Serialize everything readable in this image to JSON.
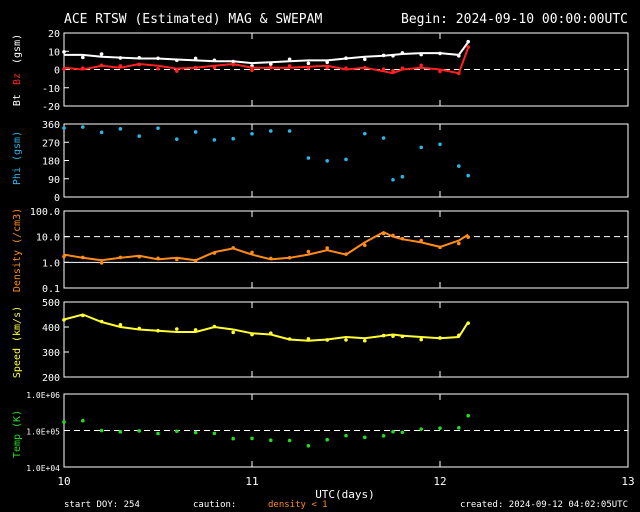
{
  "header": {
    "title": "ACE RTSW (Estimated) MAG & SWEPAM",
    "begin": "Begin: 2024-09-10 00:00:00UTC"
  },
  "footer": {
    "start_doy": "start DOY: 254",
    "caution": "caution:",
    "density_note": "density < 1",
    "created": "created: 2024-09-12 04:02:05UTC"
  },
  "xaxis": {
    "label": "UTC(days)",
    "ticks": [
      "10",
      "11",
      "12",
      "13"
    ]
  },
  "colors": {
    "bt": "#ffffff",
    "bz": "#ff2020",
    "bz_label": "#ff2020",
    "phi": "#29b6e8",
    "density": "#ff8c1a",
    "speed": "#ffff33",
    "temp": "#22dd22",
    "axes": "#ffffff"
  },
  "chart_data": [
    {
      "type": "line",
      "name": "mag",
      "ylabel_parts": [
        "Bt",
        "Bz",
        "(gsm)"
      ],
      "ylim": [
        -20,
        20
      ],
      "yticks": [
        "20",
        "10",
        "0",
        "-10",
        "-20"
      ],
      "reference_lines": [
        0
      ],
      "x": [
        10.0,
        10.1,
        10.2,
        10.3,
        10.4,
        10.5,
        10.6,
        10.7,
        10.8,
        10.9,
        11.0,
        11.1,
        11.2,
        11.3,
        11.4,
        11.5,
        11.6,
        11.7,
        11.75,
        11.8,
        11.9,
        12.0,
        12.1,
        12.15
      ],
      "series": [
        {
          "name": "Bt",
          "values": [
            8,
            8,
            7,
            6.5,
            6,
            6,
            5.5,
            5,
            4.5,
            4.5,
            3.5,
            4,
            4.5,
            5,
            5,
            6,
            7,
            7.5,
            8,
            8.5,
            9,
            9,
            8,
            15
          ]
        },
        {
          "name": "Bz",
          "values": [
            1,
            0,
            2,
            1,
            3,
            2,
            0.5,
            1,
            2,
            3,
            1,
            1,
            1,
            1.5,
            2,
            0,
            1,
            -1,
            -2,
            0,
            1,
            0,
            -2,
            12
          ]
        }
      ]
    },
    {
      "type": "scatter",
      "name": "phi",
      "ylabel": "Phi (gsm)",
      "ylim": [
        0,
        360
      ],
      "yticks": [
        "360",
        "270",
        "180",
        "90",
        "0"
      ],
      "x": [
        10.0,
        10.1,
        10.2,
        10.3,
        10.4,
        10.5,
        10.6,
        10.7,
        10.8,
        10.9,
        11.0,
        11.1,
        11.2,
        11.3,
        11.4,
        11.5,
        11.6,
        11.7,
        11.75,
        11.8,
        11.9,
        12.0,
        12.1,
        12.15
      ],
      "values": [
        330,
        340,
        320,
        350,
        310,
        330,
        300,
        330,
        280,
        300,
        310,
        330,
        320,
        200,
        180,
        190,
        310,
        280,
        80,
        100,
        230,
        250,
        150,
        120
      ]
    },
    {
      "type": "line",
      "name": "density",
      "ylabel": "Density (/cm3)",
      "scale": "log",
      "ylim": [
        0.1,
        100
      ],
      "yticks": [
        "100.0",
        "10.0",
        "1.0",
        "0.1"
      ],
      "reference_lines": [
        1,
        10
      ],
      "x": [
        10.0,
        10.1,
        10.2,
        10.3,
        10.4,
        10.5,
        10.6,
        10.7,
        10.8,
        10.9,
        11.0,
        11.1,
        11.2,
        11.3,
        11.4,
        11.5,
        11.6,
        11.7,
        11.75,
        11.8,
        11.9,
        12.0,
        12.1,
        12.15
      ],
      "values": [
        2.0,
        1.5,
        1.2,
        1.5,
        1.8,
        1.3,
        1.5,
        1.2,
        2.5,
        3.5,
        2.0,
        1.3,
        1.5,
        2.0,
        3.0,
        2.0,
        6.0,
        15.0,
        10.0,
        8.0,
        6.0,
        4.0,
        7.0,
        12.0
      ]
    },
    {
      "type": "line",
      "name": "speed",
      "ylabel": "Speed (km/s)",
      "ylim": [
        200,
        500
      ],
      "yticks": [
        "500",
        "400",
        "300",
        "200"
      ],
      "x": [
        10.0,
        10.1,
        10.2,
        10.3,
        10.4,
        10.5,
        10.6,
        10.7,
        10.8,
        10.9,
        11.0,
        11.1,
        11.2,
        11.3,
        11.4,
        11.5,
        11.6,
        11.7,
        11.75,
        11.8,
        11.9,
        12.0,
        12.1,
        12.15
      ],
      "values": [
        430,
        450,
        420,
        400,
        390,
        385,
        380,
        380,
        400,
        390,
        375,
        370,
        350,
        345,
        350,
        360,
        355,
        365,
        370,
        365,
        360,
        355,
        360,
        420
      ]
    },
    {
      "type": "scatter",
      "name": "temp",
      "ylabel": "Temp (K)",
      "scale": "log",
      "ylim": [
        10000,
        1000000
      ],
      "yticks": [
        "1.0E+06",
        "1.0E+05",
        "1.0E+04"
      ],
      "reference_lines": [
        100000
      ],
      "x": [
        10.0,
        10.1,
        10.2,
        10.3,
        10.4,
        10.5,
        10.6,
        10.7,
        10.8,
        10.9,
        11.0,
        11.1,
        11.2,
        11.3,
        11.4,
        11.5,
        11.6,
        11.7,
        11.75,
        11.8,
        11.9,
        12.0,
        12.1,
        12.15
      ],
      "values": [
        150000,
        180000,
        120000,
        100000,
        90000,
        80000,
        85000,
        90000,
        100000,
        70000,
        60000,
        60000,
        55000,
        45000,
        55000,
        65000,
        70000,
        80000,
        85000,
        90000,
        95000,
        100000,
        110000,
        220000
      ]
    }
  ]
}
